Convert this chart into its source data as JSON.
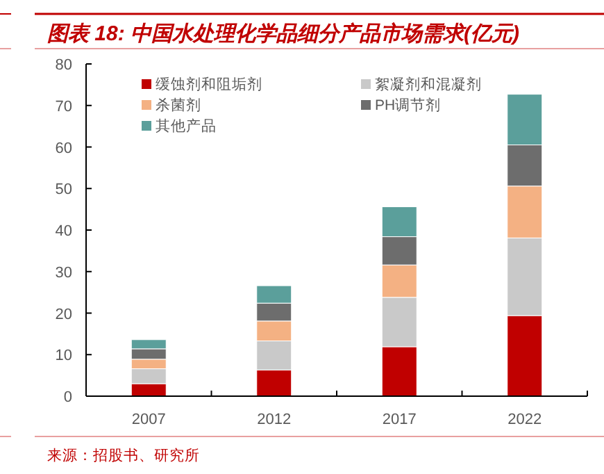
{
  "chart_data": {
    "type": "bar",
    "stacked": true,
    "title": "图表 18: 中国水处理化学品细分产品市场需求(亿元)",
    "categories": [
      "2007",
      "2012",
      "2017",
      "2022"
    ],
    "series": [
      {
        "name": "缓蚀剂和阻垢剂",
        "color": "#c00000",
        "values": [
          3.0,
          6.3,
          11.9,
          19.4
        ]
      },
      {
        "name": "絮凝剂和混凝剂",
        "color": "#c9c9c9",
        "values": [
          3.6,
          7.0,
          11.9,
          18.7
        ]
      },
      {
        "name": "杀菌剂",
        "color": "#f4b183",
        "values": [
          2.3,
          4.8,
          7.8,
          12.5
        ]
      },
      {
        "name": "PH调节剂",
        "color": "#6d6d6d",
        "values": [
          2.5,
          4.3,
          6.8,
          9.9
        ]
      },
      {
        "name": "其他产品",
        "color": "#5b9f9b",
        "values": [
          2.2,
          4.2,
          7.2,
          12.2
        ]
      }
    ],
    "ylim": [
      0,
      80
    ],
    "yticks": [
      0,
      10,
      20,
      30,
      40,
      50,
      60,
      70,
      80
    ],
    "grid": false,
    "legend": "top",
    "annotations": [
      "来源：招股书、研究所"
    ]
  }
}
